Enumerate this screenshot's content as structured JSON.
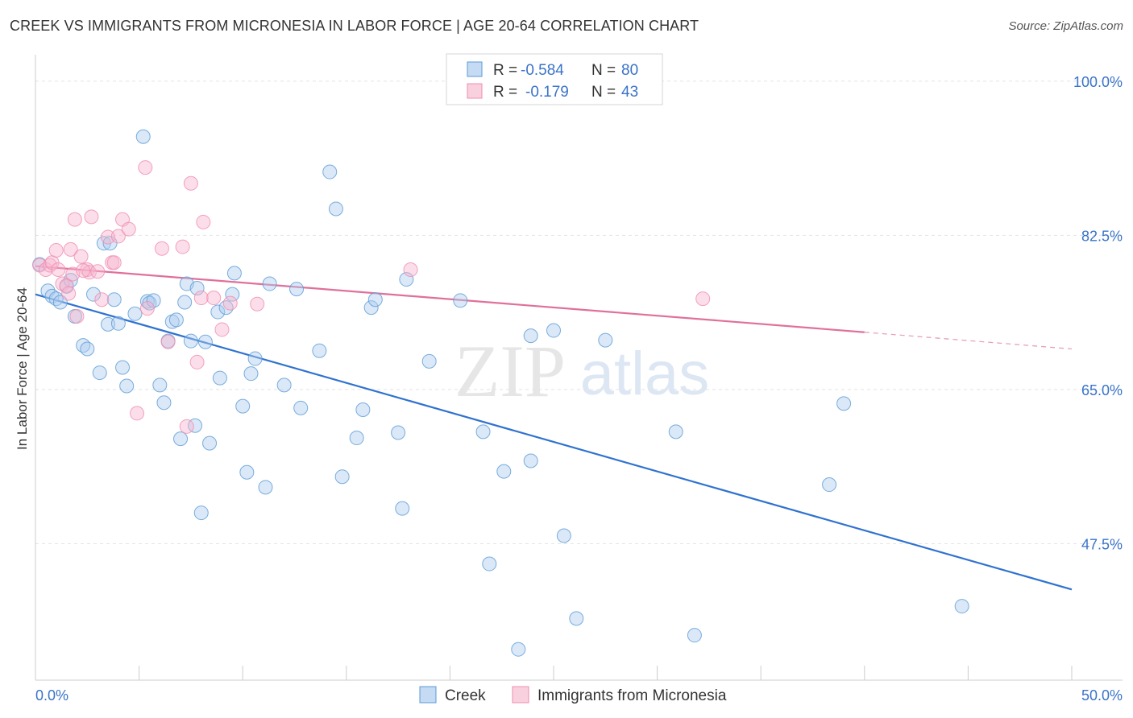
{
  "title": "CREEK VS IMMIGRANTS FROM MICRONESIA IN LABOR FORCE | AGE 20-64 CORRELATION CHART",
  "source": "Source: ZipAtlas.com",
  "watermark": {
    "zip": "ZIP",
    "atlas": "atlas"
  },
  "legend_box": {
    "rows": [
      {
        "r_label": "R =",
        "r_value": "-0.584",
        "n_label": "N =",
        "n_value": "80",
        "color": "#5b9bd5"
      },
      {
        "r_label": "R =",
        "r_value": "-0.179",
        "n_label": "N =",
        "n_value": "43",
        "color": "#f08cb0"
      }
    ]
  },
  "chart_data": {
    "type": "scatter",
    "title": "CREEK VS IMMIGRANTS FROM MICRONESIA IN LABOR FORCE | AGE 20-64 CORRELATION CHART",
    "xlabel": "",
    "ylabel": "In Labor Force | Age 20-64",
    "xlim": [
      0,
      50
    ],
    "ylim": [
      32,
      103
    ],
    "x_tick_labels": [
      "0.0%",
      "50.0%"
    ],
    "y_ticks": [
      100,
      82.5,
      65,
      47.5
    ],
    "y_tick_labels": [
      "100.0%",
      "82.5%",
      "65.0%",
      "47.5%"
    ],
    "grid": true,
    "legend_position": "bottom",
    "series": [
      {
        "name": "Creek",
        "color": "#5b9bd5",
        "trend": {
          "x": [
            0,
            50
          ],
          "y": [
            75.8,
            42.3
          ]
        },
        "points": [
          [
            0.2,
            79.2
          ],
          [
            0.6,
            76.2
          ],
          [
            0.8,
            75.6
          ],
          [
            1.0,
            75.3
          ],
          [
            1.2,
            74.9
          ],
          [
            1.5,
            76.7
          ],
          [
            1.7,
            77.4
          ],
          [
            1.9,
            73.3
          ],
          [
            2.3,
            70.0
          ],
          [
            2.5,
            69.6
          ],
          [
            2.8,
            75.8
          ],
          [
            3.1,
            66.9
          ],
          [
            3.3,
            81.6
          ],
          [
            3.5,
            72.4
          ],
          [
            3.8,
            75.2
          ],
          [
            4.0,
            72.5
          ],
          [
            4.2,
            67.5
          ],
          [
            4.4,
            65.4
          ],
          [
            4.8,
            73.6
          ],
          [
            5.2,
            93.7
          ],
          [
            5.4,
            75.0
          ],
          [
            5.5,
            74.8
          ],
          [
            5.7,
            75.1
          ],
          [
            6.0,
            65.5
          ],
          [
            6.2,
            63.5
          ],
          [
            6.4,
            70.5
          ],
          [
            6.6,
            72.7
          ],
          [
            6.8,
            72.9
          ],
          [
            7.0,
            59.4
          ],
          [
            7.2,
            74.9
          ],
          [
            7.3,
            77.0
          ],
          [
            7.5,
            70.5
          ],
          [
            7.7,
            60.9
          ],
          [
            7.8,
            76.5
          ],
          [
            8.0,
            51.0
          ],
          [
            8.2,
            70.4
          ],
          [
            8.4,
            58.9
          ],
          [
            8.8,
            73.8
          ],
          [
            8.9,
            66.3
          ],
          [
            9.2,
            74.3
          ],
          [
            9.5,
            75.8
          ],
          [
            9.6,
            78.2
          ],
          [
            10.0,
            63.1
          ],
          [
            10.2,
            55.6
          ],
          [
            10.4,
            66.8
          ],
          [
            10.6,
            68.5
          ],
          [
            11.1,
            53.9
          ],
          [
            11.3,
            77.0
          ],
          [
            12.0,
            65.5
          ],
          [
            12.6,
            76.4
          ],
          [
            12.8,
            62.9
          ],
          [
            13.7,
            69.4
          ],
          [
            14.2,
            89.7
          ],
          [
            14.5,
            85.5
          ],
          [
            14.8,
            55.1
          ],
          [
            15.5,
            59.5
          ],
          [
            15.8,
            62.7
          ],
          [
            16.2,
            74.3
          ],
          [
            16.4,
            75.2
          ],
          [
            17.5,
            60.1
          ],
          [
            17.7,
            51.5
          ],
          [
            17.9,
            77.5
          ],
          [
            19.0,
            68.2
          ],
          [
            20.5,
            75.1
          ],
          [
            21.6,
            60.2
          ],
          [
            21.9,
            45.2
          ],
          [
            22.6,
            55.7
          ],
          [
            23.3,
            35.5
          ],
          [
            23.9,
            71.1
          ],
          [
            23.9,
            56.9
          ],
          [
            25.0,
            71.7
          ],
          [
            25.5,
            48.4
          ],
          [
            26.1,
            39.0
          ],
          [
            27.5,
            70.6
          ],
          [
            30.9,
            60.2
          ],
          [
            31.8,
            37.1
          ],
          [
            38.3,
            54.2
          ],
          [
            39.0,
            63.4
          ],
          [
            44.7,
            40.4
          ],
          [
            3.6,
            81.6
          ]
        ]
      },
      {
        "name": "Immigrants from Micronesia",
        "color": "#f08cb0",
        "trend": {
          "x": [
            0,
            40
          ],
          "y": [
            79.0,
            71.5
          ]
        },
        "trend_dashed": {
          "x": [
            40,
            50
          ],
          "y": [
            71.5,
            69.6
          ]
        },
        "points": [
          [
            0.2,
            79.1
          ],
          [
            0.5,
            78.6
          ],
          [
            0.7,
            79.1
          ],
          [
            0.8,
            79.4
          ],
          [
            1.0,
            80.8
          ],
          [
            1.1,
            78.6
          ],
          [
            1.3,
            77.0
          ],
          [
            1.5,
            76.8
          ],
          [
            1.6,
            75.9
          ],
          [
            1.7,
            80.9
          ],
          [
            1.8,
            78.1
          ],
          [
            1.9,
            84.3
          ],
          [
            2.0,
            73.3
          ],
          [
            2.2,
            80.1
          ],
          [
            2.5,
            78.6
          ],
          [
            2.6,
            78.3
          ],
          [
            2.7,
            84.6
          ],
          [
            3.0,
            78.4
          ],
          [
            3.2,
            75.2
          ],
          [
            3.5,
            82.3
          ],
          [
            3.7,
            79.4
          ],
          [
            3.8,
            79.4
          ],
          [
            4.0,
            82.4
          ],
          [
            4.2,
            84.3
          ],
          [
            4.5,
            83.2
          ],
          [
            4.9,
            62.3
          ],
          [
            5.3,
            90.2
          ],
          [
            5.4,
            74.2
          ],
          [
            6.1,
            81.0
          ],
          [
            6.4,
            70.4
          ],
          [
            7.1,
            81.2
          ],
          [
            7.3,
            60.8
          ],
          [
            7.5,
            88.4
          ],
          [
            7.8,
            68.1
          ],
          [
            8.0,
            75.4
          ],
          [
            8.1,
            84.0
          ],
          [
            8.6,
            75.4
          ],
          [
            9.0,
            71.8
          ],
          [
            9.4,
            74.8
          ],
          [
            10.7,
            74.7
          ],
          [
            18.1,
            78.6
          ],
          [
            32.2,
            75.3
          ],
          [
            2.3,
            78.5
          ]
        ]
      }
    ]
  },
  "bottom_legend": [
    {
      "label": "Creek",
      "color": "#5b9bd5"
    },
    {
      "label": "Immigrants from Micronesia",
      "color": "#f08cb0"
    }
  ]
}
